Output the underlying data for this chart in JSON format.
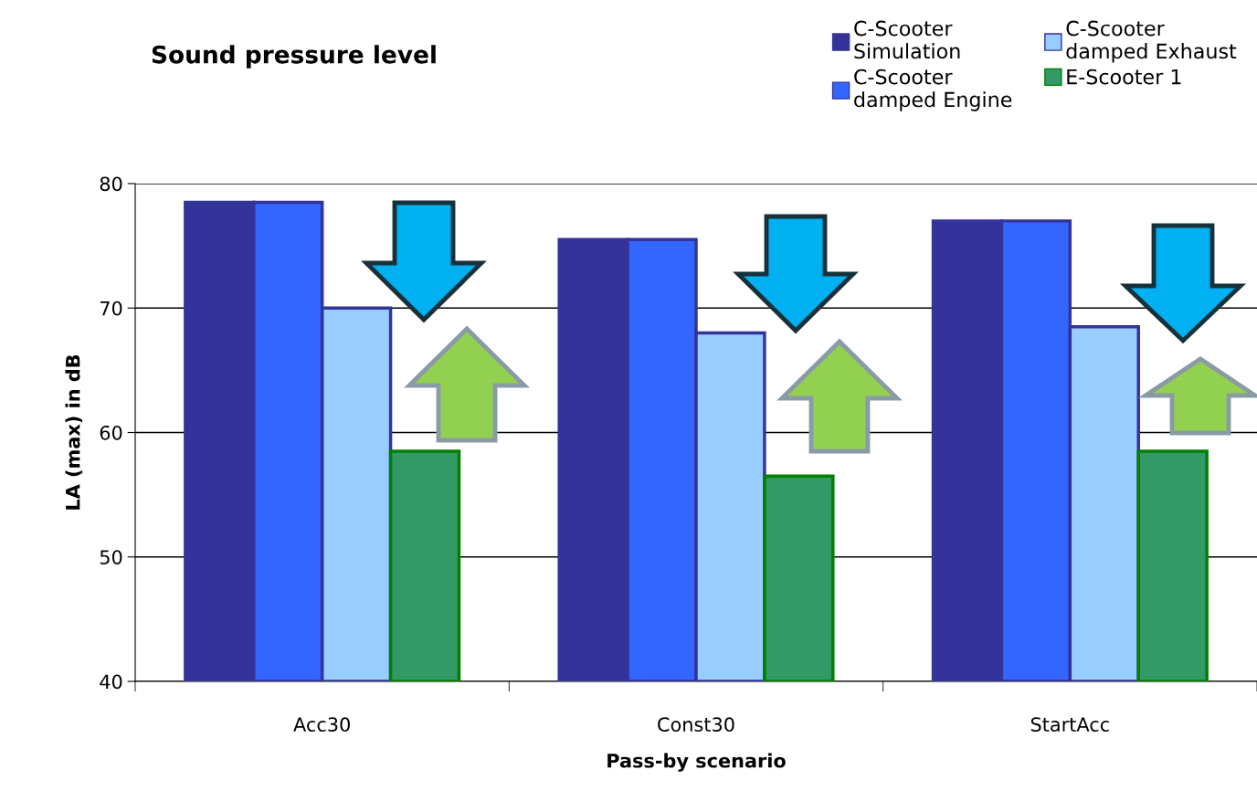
{
  "chart_data": {
    "type": "bar",
    "title": "Sound pressure level",
    "xlabel": "Pass-by scenario",
    "ylabel": "LA (max) in dB",
    "categories": [
      "Acc30",
      "Const30",
      "StartAcc"
    ],
    "series": [
      {
        "name": "C-Scooter\nSimulation",
        "color": "#333399",
        "values": [
          78.5,
          75.5,
          77.0
        ]
      },
      {
        "name": "C-Scooter\ndamped Engine",
        "color": "#3366ff",
        "values": [
          78.5,
          75.5,
          77.0
        ]
      },
      {
        "name": "C-Scooter\ndamped Exhaust",
        "color": "#99ccff",
        "values": [
          70.0,
          68.0,
          68.5
        ]
      },
      {
        "name": "E-Scooter 1",
        "color": "#339966",
        "values": [
          58.5,
          56.5,
          58.5
        ]
      }
    ],
    "ylim": [
      40,
      80
    ],
    "yticks": [
      40,
      50,
      60,
      70,
      80
    ],
    "grid": "y",
    "legend": "top right"
  }
}
